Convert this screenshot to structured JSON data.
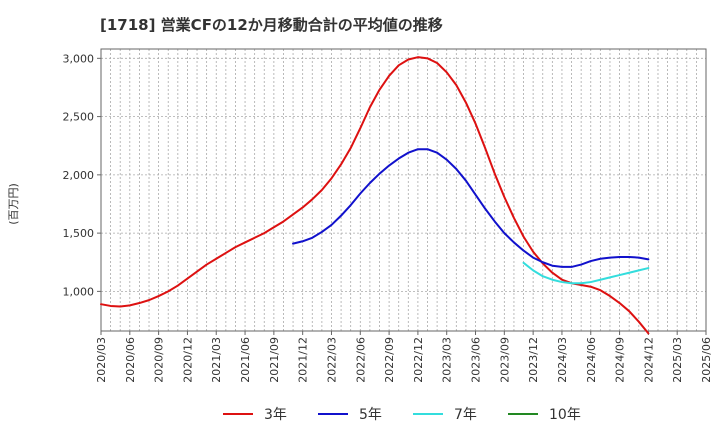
{
  "chart_data": {
    "type": "line",
    "title": "[1718]  営業CFの12か月移動合計の平均値の推移",
    "ylabel": "(百万円)",
    "xlabel": "",
    "x_tick_labels": [
      "2020/03",
      "2020/06",
      "2020/09",
      "2020/12",
      "2021/03",
      "2021/06",
      "2021/09",
      "2021/12",
      "2022/03",
      "2022/06",
      "2022/09",
      "2022/12",
      "2023/03",
      "2023/06",
      "2023/09",
      "2023/12",
      "2024/03",
      "2024/06",
      "2024/09",
      "2024/12",
      "2025/03",
      "2025/06"
    ],
    "y_ticks": [
      1000,
      1500,
      2000,
      2500,
      3000
    ],
    "y_tick_labels": [
      "1,000",
      "1,500",
      "2,000",
      "2,500",
      "3,000"
    ],
    "ylim": [
      660,
      3080
    ],
    "grid": true,
    "legend_position": "bottom",
    "series": [
      {
        "name": "3年",
        "color": "#dd1111",
        "x": [
          "2020/03",
          "2020/04",
          "2020/05",
          "2020/06",
          "2020/07",
          "2020/08",
          "2020/09",
          "2020/10",
          "2020/11",
          "2020/12",
          "2021/01",
          "2021/02",
          "2021/03",
          "2021/04",
          "2021/05",
          "2021/06",
          "2021/07",
          "2021/08",
          "2021/09",
          "2021/10",
          "2021/11",
          "2021/12",
          "2022/01",
          "2022/02",
          "2022/03",
          "2022/04",
          "2022/05",
          "2022/06",
          "2022/07",
          "2022/08",
          "2022/09",
          "2022/10",
          "2022/11",
          "2022/12",
          "2023/01",
          "2023/02",
          "2023/03",
          "2023/04",
          "2023/05",
          "2023/06",
          "2023/07",
          "2023/08",
          "2023/09",
          "2023/10",
          "2023/11",
          "2023/12",
          "2024/01",
          "2024/02",
          "2024/03",
          "2024/04",
          "2024/05",
          "2024/06",
          "2024/07",
          "2024/08",
          "2024/09",
          "2024/10",
          "2024/11",
          "2024/12"
        ],
        "values": [
          890,
          875,
          870,
          880,
          900,
          925,
          960,
          1000,
          1050,
          1110,
          1170,
          1230,
          1280,
          1330,
          1380,
          1420,
          1460,
          1500,
          1550,
          1600,
          1660,
          1720,
          1790,
          1870,
          1970,
          2090,
          2230,
          2400,
          2580,
          2730,
          2850,
          2940,
          2990,
          3010,
          3000,
          2960,
          2880,
          2770,
          2620,
          2440,
          2230,
          2010,
          1810,
          1630,
          1470,
          1340,
          1240,
          1160,
          1100,
          1070,
          1055,
          1040,
          1010,
          960,
          900,
          830,
          740,
          640
        ]
      },
      {
        "name": "5年",
        "color": "#1111cc",
        "x": [
          "2021/11",
          "2021/12",
          "2022/01",
          "2022/02",
          "2022/03",
          "2022/04",
          "2022/05",
          "2022/06",
          "2022/07",
          "2022/08",
          "2022/09",
          "2022/10",
          "2022/11",
          "2022/12",
          "2023/01",
          "2023/02",
          "2023/03",
          "2023/04",
          "2023/05",
          "2023/06",
          "2023/07",
          "2023/08",
          "2023/09",
          "2023/10",
          "2023/11",
          "2023/12",
          "2024/01",
          "2024/02",
          "2024/03",
          "2024/04",
          "2024/05",
          "2024/06",
          "2024/07",
          "2024/08",
          "2024/09",
          "2024/10",
          "2024/11",
          "2024/12"
        ],
        "values": [
          1410,
          1430,
          1460,
          1510,
          1570,
          1650,
          1740,
          1840,
          1930,
          2010,
          2080,
          2140,
          2190,
          2220,
          2220,
          2190,
          2130,
          2050,
          1950,
          1830,
          1710,
          1600,
          1500,
          1420,
          1350,
          1290,
          1250,
          1220,
          1210,
          1210,
          1230,
          1260,
          1280,
          1290,
          1295,
          1295,
          1290,
          1275
        ]
      },
      {
        "name": "7年",
        "color": "#33dddd",
        "x": [
          "2023/11",
          "2023/12",
          "2024/01",
          "2024/02",
          "2024/03",
          "2024/04",
          "2024/05",
          "2024/06",
          "2024/07",
          "2024/08",
          "2024/09",
          "2024/10",
          "2024/11",
          "2024/12"
        ],
        "values": [
          1245,
          1180,
          1130,
          1100,
          1080,
          1070,
          1070,
          1080,
          1100,
          1120,
          1140,
          1160,
          1180,
          1200
        ]
      },
      {
        "name": "10年",
        "color": "#228822",
        "x": [],
        "values": []
      }
    ]
  }
}
